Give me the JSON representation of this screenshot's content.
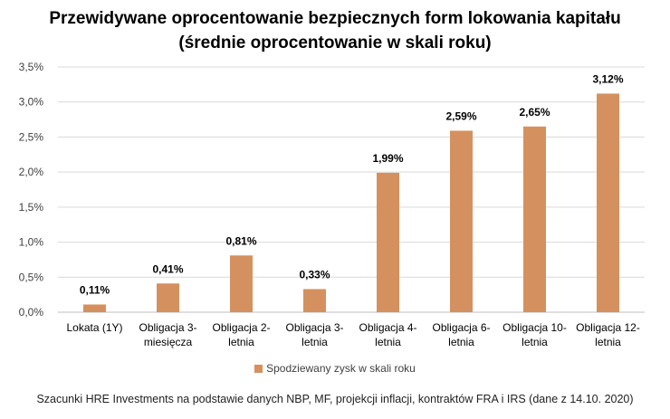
{
  "chart_data": {
    "type": "bar",
    "title": "Przewidywane oprocentowanie bezpiecznych form lokowania kapitału",
    "subtitle": "(średnie oprocentowanie w skali roku)",
    "categories": [
      [
        "Lokata (1Y)"
      ],
      [
        "Obligacja 3-",
        "miesięcza"
      ],
      [
        "Obligacja 2-",
        "letnia"
      ],
      [
        "Obligacja 3-",
        "letnia"
      ],
      [
        "Obligacja 4-",
        "letnia"
      ],
      [
        "Obligacja 6-",
        "letnia"
      ],
      [
        "Obligacja 10-",
        "letnia"
      ],
      [
        "Obligacja 12-",
        "letnia"
      ]
    ],
    "series": [
      {
        "name": "Spodziewany zysk w skali roku",
        "values": [
          0.11,
          0.41,
          0.81,
          0.33,
          1.99,
          2.59,
          2.65,
          3.12
        ],
        "labels": [
          "0,11%",
          "0,41%",
          "0,81%",
          "0,33%",
          "1,99%",
          "2,59%",
          "2,65%",
          "3,12%"
        ],
        "color": "#d4915f"
      }
    ],
    "ylim": [
      0,
      3.5
    ],
    "yticks": [
      0,
      0.5,
      1.0,
      1.5,
      2.0,
      2.5,
      3.0,
      3.5
    ],
    "ytick_labels": [
      "0,0%",
      "0,5%",
      "1,0%",
      "1,5%",
      "2,0%",
      "2,5%",
      "3,0%",
      "3,5%"
    ],
    "grid": true,
    "legend_position": "bottom",
    "xlabel": "",
    "ylabel": ""
  },
  "footnote": "Szacunki HRE Investments na podstawie danych NBP, MF, projekcji inflacji, kontraktów FRA i IRS (dane z 14.10. 2020)"
}
